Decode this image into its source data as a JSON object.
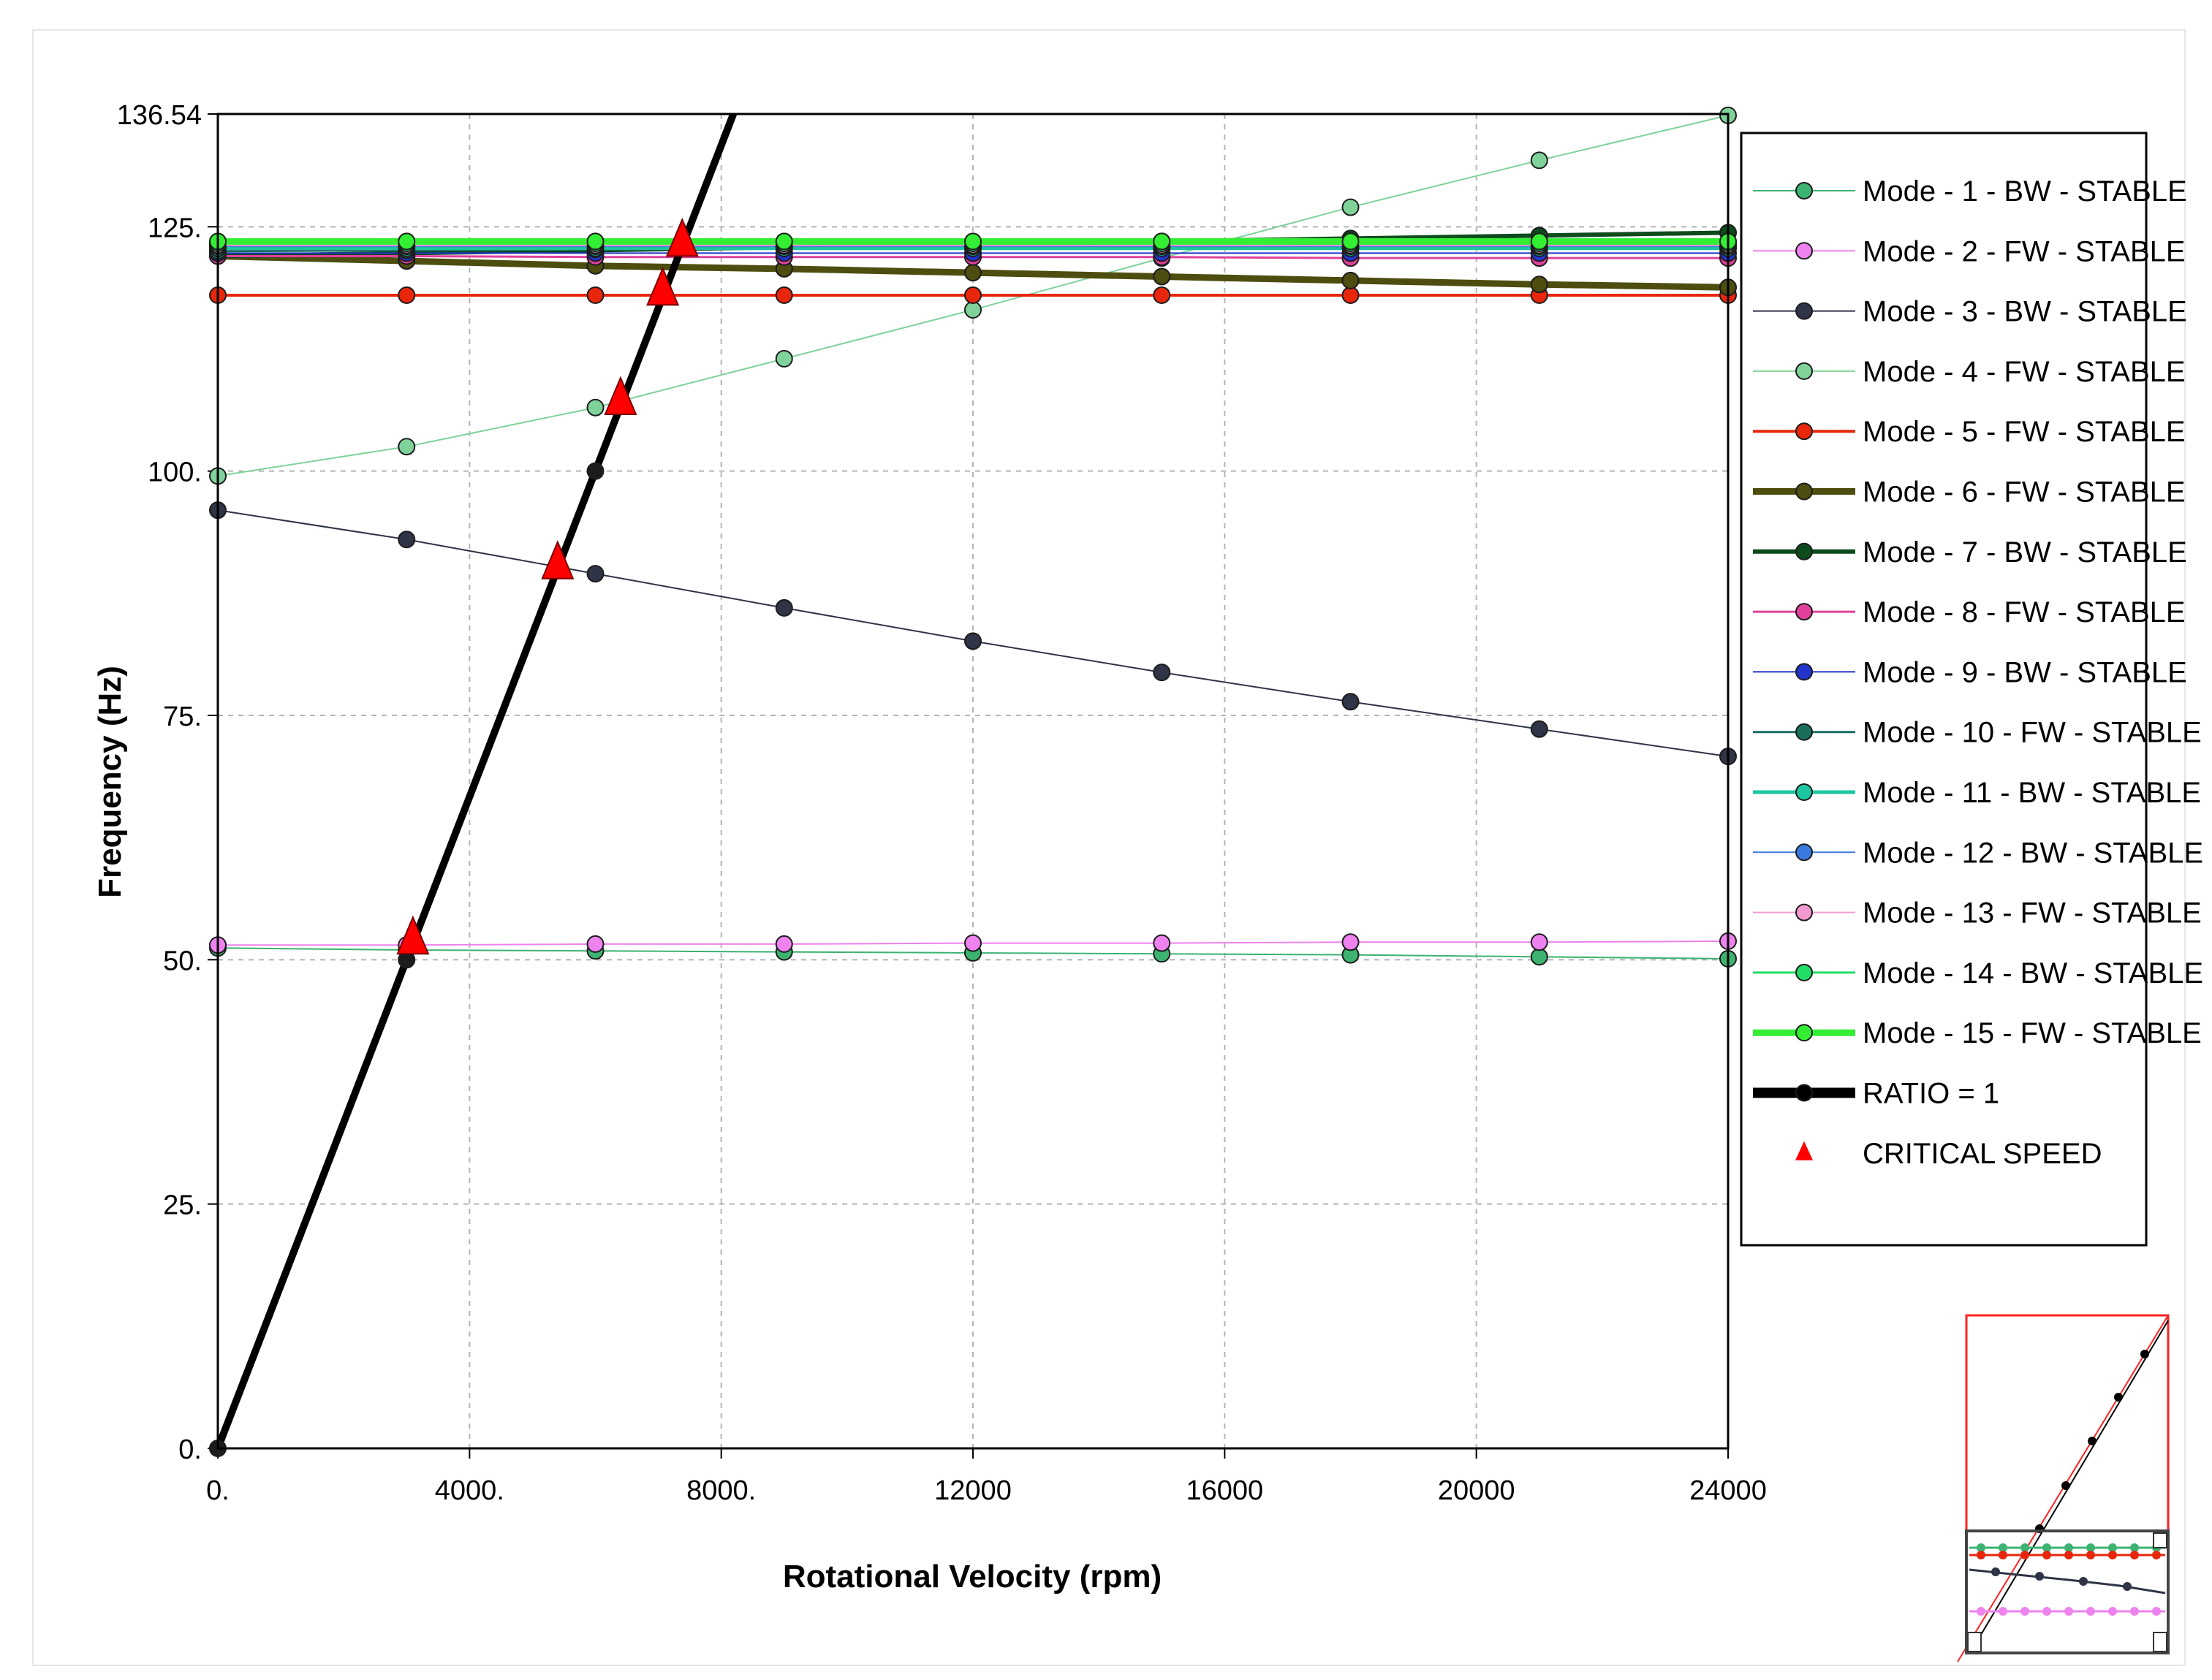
{
  "chart_data": {
    "type": "line",
    "xlabel": "Rotational Velocity (rpm)",
    "ylabel": "Frequency (Hz)",
    "xlim": [
      0,
      24000
    ],
    "ylim": [
      0,
      136.54
    ],
    "x_ticks": [
      "0.",
      "4000.",
      "8000.",
      "12000",
      "16000",
      "20000",
      "24000"
    ],
    "y_ticks": [
      "0.",
      "25.",
      "50.",
      "75.",
      "100.",
      "125.",
      "136.54"
    ],
    "grid": true,
    "legend_position": "right",
    "x": [
      0,
      3000,
      6000,
      9000,
      12000,
      15000,
      18000,
      21000,
      24000
    ],
    "series": [
      {
        "name": "Mode - 1  - BW  - STABLE",
        "color": "#3cb371",
        "width": 2,
        "values": [
          51.2,
          51.0,
          50.9,
          50.8,
          50.7,
          50.6,
          50.5,
          50.3,
          50.1
        ]
      },
      {
        "name": "Mode - 2  - FW  - STABLE",
        "color": "#ee82ee",
        "width": 2,
        "values": [
          51.5,
          51.5,
          51.6,
          51.6,
          51.7,
          51.7,
          51.8,
          51.8,
          51.9
        ]
      },
      {
        "name": "Mode - 3  - BW  - STABLE",
        "color": "#2f3447",
        "width": 2,
        "values": [
          96.0,
          93.0,
          89.5,
          86.0,
          82.6,
          79.4,
          76.4,
          73.6,
          70.8
        ]
      },
      {
        "name": "Mode - 4  - FW  - STABLE",
        "color": "#7fd39a",
        "width": 2,
        "values": [
          99.5,
          102.5,
          106.5,
          111.5,
          116.5,
          121.8,
          127.0,
          131.8,
          136.4
        ]
      },
      {
        "name": "Mode - 5  - FW  - STABLE",
        "color": "#e8260c",
        "width": 4,
        "values": [
          118.0,
          118.0,
          118.0,
          118.0,
          118.0,
          118.0,
          118.0,
          118.0,
          118.0
        ]
      },
      {
        "name": "Mode - 6  - FW  - STABLE",
        "color": "#4d4d10",
        "width": 9,
        "values": [
          122.0,
          121.5,
          121.0,
          120.7,
          120.3,
          119.9,
          119.5,
          119.1,
          118.8
        ]
      },
      {
        "name": "Mode - 7  - BW  - STABLE",
        "color": "#0d4a1c",
        "width": 6,
        "values": [
          122.0,
          122.3,
          122.6,
          122.9,
          123.2,
          123.5,
          123.8,
          124.1,
          124.4
        ]
      },
      {
        "name": "Mode - 8  - FW  - STABLE",
        "color": "#e0409a",
        "width": 3,
        "values": [
          122.0,
          122.0,
          121.9,
          121.9,
          121.9,
          121.9,
          121.8,
          121.8,
          121.8
        ]
      },
      {
        "name": "Mode - 9  - BW  - STABLE",
        "color": "#2233cc",
        "width": 2,
        "values": [
          122.3,
          122.3,
          122.3,
          122.3,
          122.3,
          122.3,
          122.3,
          122.3,
          122.3
        ]
      },
      {
        "name": "Mode - 10  - FW  - STABLE",
        "color": "#1a6e5c",
        "width": 3,
        "values": [
          122.5,
          122.6,
          122.7,
          122.8,
          122.9,
          123.0,
          123.1,
          123.2,
          123.3
        ]
      },
      {
        "name": "Mode - 11  - BW  - STABLE",
        "color": "#1cc6a0",
        "width": 5,
        "values": [
          122.8,
          122.8,
          122.8,
          122.8,
          122.8,
          122.8,
          122.8,
          122.8,
          122.8
        ]
      },
      {
        "name": "Mode - 12  - BW  - STABLE",
        "color": "#3b7be0",
        "width": 2,
        "values": [
          123.0,
          123.0,
          123.0,
          123.0,
          123.0,
          123.0,
          123.0,
          123.0,
          123.0
        ]
      },
      {
        "name": "Mode - 13  - FW  - STABLE",
        "color": "#f29ad0",
        "width": 2,
        "values": [
          123.1,
          123.1,
          123.1,
          123.1,
          123.1,
          123.1,
          123.1,
          123.1,
          123.1
        ]
      },
      {
        "name": "Mode - 14  - BW  - STABLE",
        "color": "#22dd66",
        "width": 3,
        "values": [
          123.3,
          123.3,
          123.3,
          123.3,
          123.3,
          123.3,
          123.3,
          123.3,
          123.3
        ]
      },
      {
        "name": "Mode - 15  - FW  - STABLE",
        "color": "#33ee33",
        "width": 9,
        "values": [
          123.5,
          123.5,
          123.5,
          123.5,
          123.5,
          123.5,
          123.5,
          123.5,
          123.5
        ]
      }
    ],
    "ratio_line": {
      "name": "RATIO = 1",
      "color": "#000000",
      "width": 10,
      "points": [
        [
          0,
          0
        ],
        [
          3000,
          50
        ],
        [
          6000,
          100
        ],
        [
          8280,
          138
        ]
      ]
    },
    "critical_speeds": {
      "name": "CRITICAL SPEED",
      "color": "#ff0000",
      "points": [
        [
          3100,
          51.8
        ],
        [
          5400,
          90.2
        ],
        [
          6400,
          107.0
        ],
        [
          7070,
          118.2
        ],
        [
          7380,
          123.2
        ]
      ]
    }
  }
}
